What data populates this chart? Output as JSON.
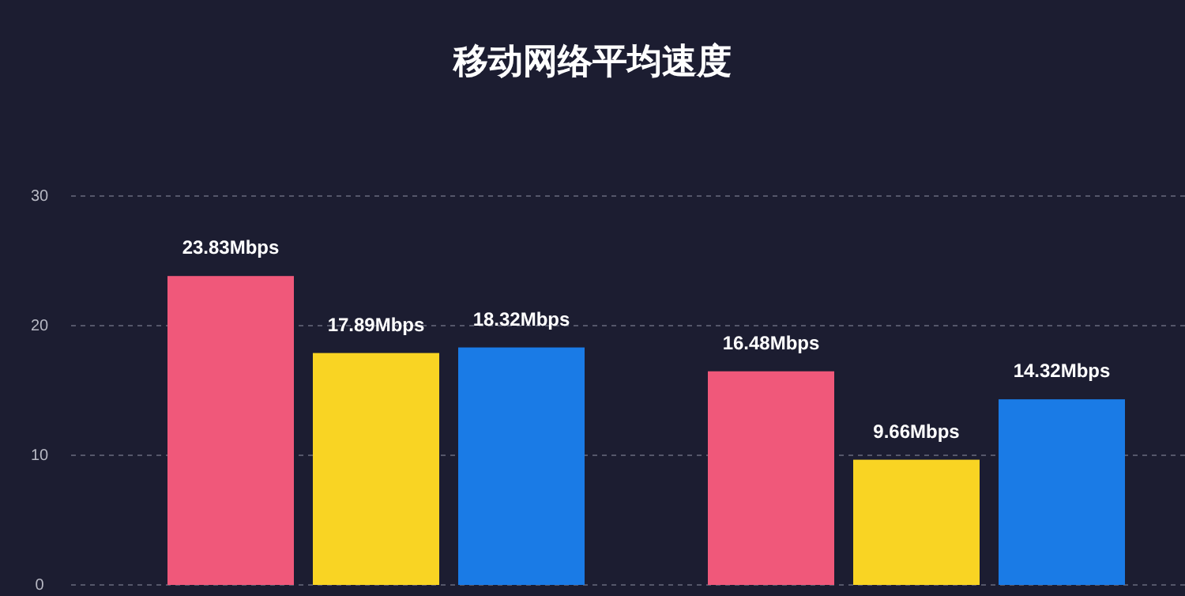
{
  "chart_data": {
    "type": "bar",
    "title": "移动网络平均速度",
    "categories": [
      null,
      null
    ],
    "series": [
      {
        "color": "#f0587a",
        "values": [
          23.83,
          16.48
        ],
        "value_labels": [
          "23.83Mbps",
          "16.48Mbps"
        ]
      },
      {
        "color": "#f9d423",
        "values": [
          17.89,
          9.66
        ],
        "value_labels": [
          "17.89Mbps",
          "9.66Mbps"
        ]
      },
      {
        "color": "#1a7be6",
        "values": [
          18.32,
          14.32
        ],
        "value_labels": [
          "18.32Mbps",
          "14.32Mbps"
        ]
      }
    ],
    "ylim": [
      0,
      30
    ],
    "yticks": [
      0,
      10,
      20,
      30
    ],
    "grid": "y"
  }
}
